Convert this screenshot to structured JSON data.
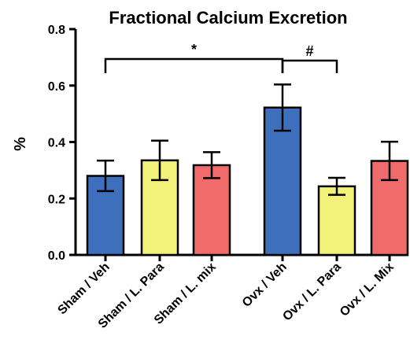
{
  "chart_data": {
    "type": "bar",
    "title": "Fractional Calcium Excretion",
    "ylabel": "%",
    "xlabel": "",
    "ylim": [
      0,
      0.8
    ],
    "yticks": [
      "0.0",
      "0.2",
      "0.4",
      "0.6",
      "0.8"
    ],
    "grid": false,
    "categories": [
      "Sham / Veh",
      "Sham / L. Para",
      "Sham / L. mix",
      "Ovx / Veh",
      "Ovx / L. Para",
      "Ovx / L. Mix"
    ],
    "values": [
      0.28,
      0.335,
      0.318,
      0.522,
      0.243,
      0.333
    ],
    "errors": [
      0.054,
      0.07,
      0.046,
      0.082,
      0.03,
      0.068
    ],
    "colors": [
      "#3e6fbd",
      "#f2f27a",
      "#f06c6c",
      "#3e6fbd",
      "#f2f27a",
      "#f06c6c"
    ],
    "annotations": [
      {
        "label": "*",
        "from": 0,
        "to": 3
      },
      {
        "label": "#",
        "from": 3,
        "to": 4
      }
    ]
  }
}
